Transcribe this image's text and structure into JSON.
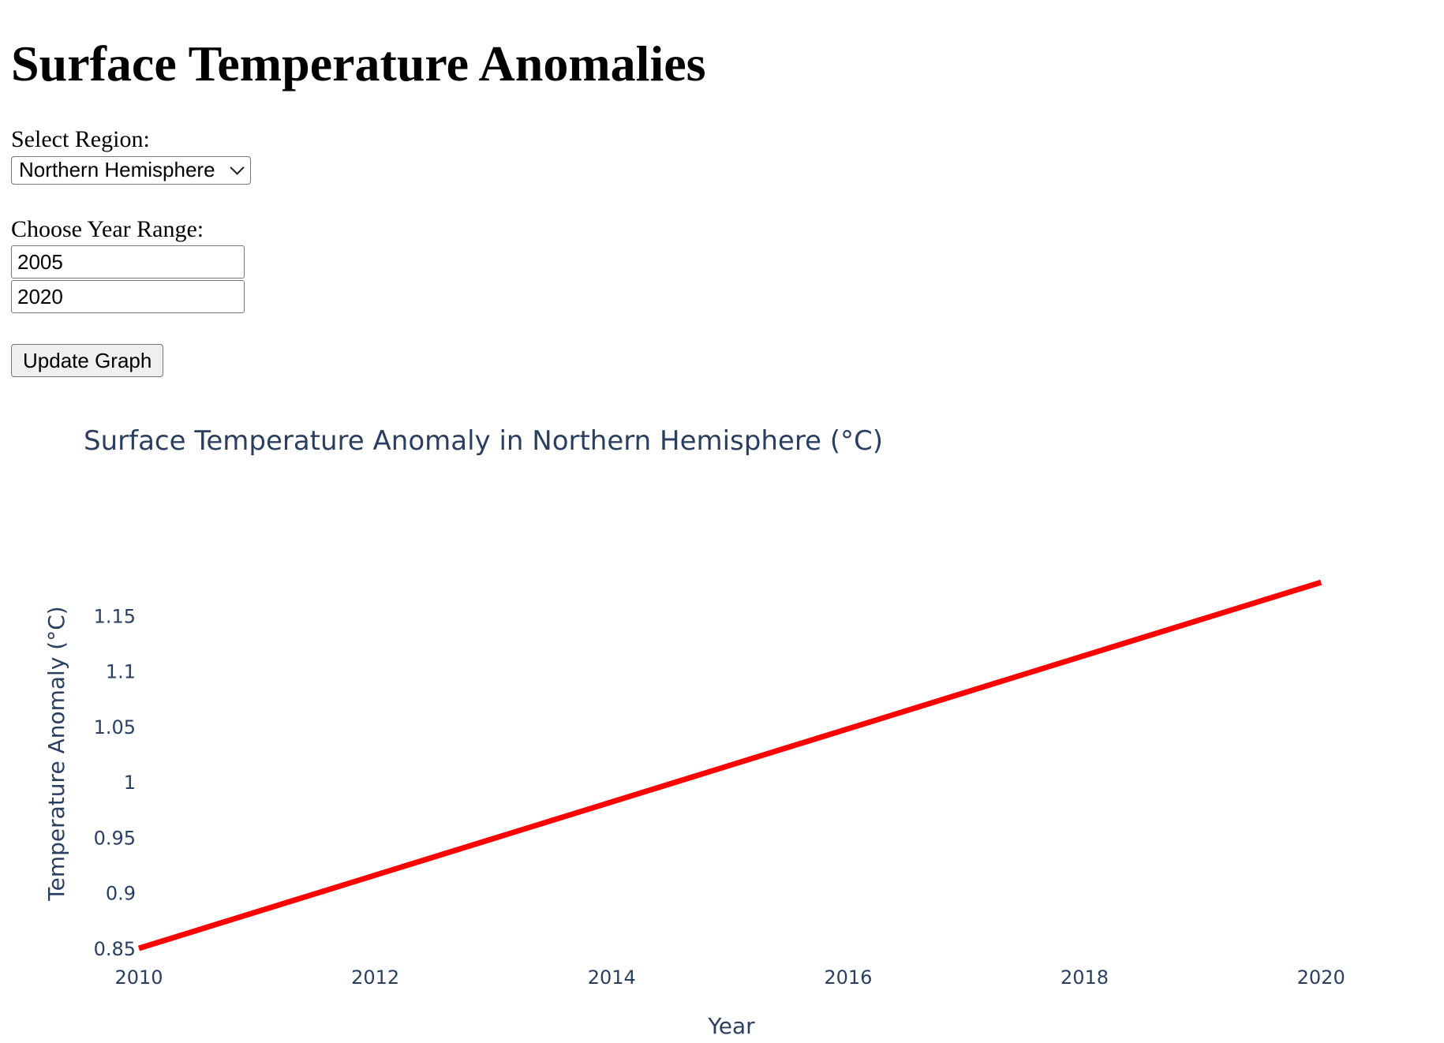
{
  "page": {
    "title": "Surface Temperature Anomalies"
  },
  "controls": {
    "region_label": "Select Region:",
    "region_selected": "Northern Hemisphere",
    "year_label": "Choose Year Range:",
    "year_start": "2005",
    "year_end": "2020",
    "update_button_label": "Update Graph"
  },
  "chart_data": {
    "type": "line",
    "title": "Surface Temperature Anomaly in Northern Hemisphere (°C)",
    "xlabel": "Year",
    "ylabel": "Temperature Anomaly (°C)",
    "x_ticks": [
      "2010",
      "2012",
      "2014",
      "2016",
      "2018",
      "2020"
    ],
    "y_ticks": [
      "0.85",
      "0.9",
      "0.95",
      "1",
      "1.05",
      "1.1",
      "1.15"
    ],
    "xlim": [
      2010,
      2021
    ],
    "ylim": [
      0.85,
      1.2
    ],
    "grid": false,
    "series": [
      {
        "color": "#ff0000",
        "x": [
          2010,
          2020
        ],
        "y": [
          0.85,
          1.18
        ]
      }
    ]
  }
}
